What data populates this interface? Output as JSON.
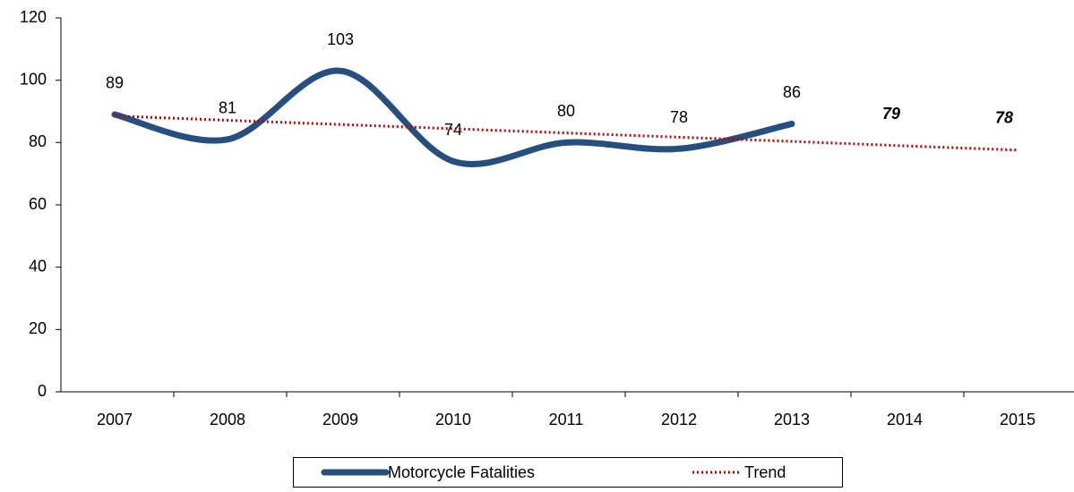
{
  "chart_data": {
    "type": "line",
    "categories": [
      "2007",
      "2008",
      "2009",
      "2010",
      "2011",
      "2012",
      "2013",
      "2014",
      "2015"
    ],
    "series": [
      {
        "name": "Motorcycle Fatalities",
        "color": "#264f7f",
        "values": [
          89,
          81,
          103,
          74,
          80,
          78,
          86,
          null,
          null
        ]
      },
      {
        "name": "Trend",
        "color": "#c00000",
        "values": [
          88.5,
          87.14,
          85.79,
          84.43,
          83.07,
          81.71,
          80.36,
          78.93,
          77.57
        ],
        "value_labels": [
          null,
          null,
          null,
          null,
          null,
          null,
          null,
          "79",
          "78"
        ]
      }
    ],
    "ylim": [
      0,
      120
    ],
    "yticks": [
      0,
      20,
      40,
      60,
      80,
      100,
      120
    ],
    "legend": "bottom"
  }
}
